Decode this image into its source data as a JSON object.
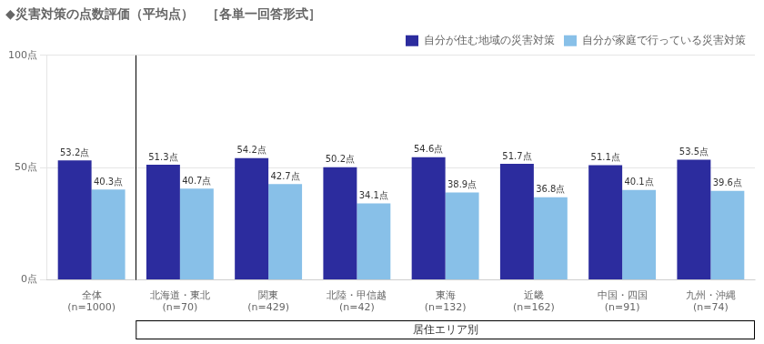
{
  "chart_data": {
    "type": "bar",
    "title": "◆災害対策の点数評価（平均点）　［各単一回答形式］",
    "categories": [
      "全体",
      "北海道・東北",
      "関東",
      "北陸・甲信越",
      "東海",
      "近畿",
      "中国・四国",
      "九州・沖縄"
    ],
    "subcategories": [
      "(n=1000)",
      "(n=70)",
      "(n=429)",
      "(n=42)",
      "(n=132)",
      "(n=162)",
      "(n=91)",
      "(n=74)"
    ],
    "annotation": "居住エリア別",
    "series": [
      {
        "name": "自分が住む地域の災害対策",
        "color": "#2c2c9e",
        "values": [
          53.2,
          51.3,
          54.2,
          50.2,
          54.6,
          51.7,
          51.1,
          53.5
        ],
        "value_labels": [
          "53.2点",
          "51.3点",
          "54.2点",
          "50.2点",
          "54.6点",
          "51.7点",
          "51.1点",
          "53.5点"
        ]
      },
      {
        "name": "自分が家庭で行っている災害対策",
        "color": "#88c0e8",
        "values": [
          40.3,
          40.7,
          42.7,
          34.1,
          38.9,
          36.8,
          40.1,
          39.6
        ],
        "value_labels": [
          "40.3点",
          "40.7点",
          "42.7点",
          "34.1点",
          "38.9点",
          "36.8点",
          "40.1点",
          "39.6点"
        ]
      }
    ],
    "ylim": [
      0,
      100
    ],
    "yticks": [
      {
        "value": 0,
        "label": "0点"
      },
      {
        "value": 50,
        "label": "50点"
      },
      {
        "value": 100,
        "label": "100点"
      }
    ],
    "grid": true,
    "legend": "upper right",
    "data_labels": true
  }
}
